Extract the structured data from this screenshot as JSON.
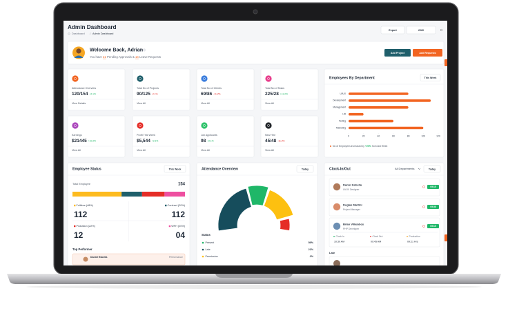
{
  "header": {
    "title": "Admin Dashboard",
    "breadcrumb": [
      "Dashboard",
      "Admin Dashboard"
    ],
    "export": "Export",
    "year": "2026"
  },
  "welcome": {
    "title": "Welcome Back, Adrian",
    "text_before": "You have",
    "approvals": "21",
    "text_middle": "Pending Approvals &",
    "leaves": "14",
    "text_after": "Leave Requests",
    "buttons": [
      "Add Project",
      "Add Requests"
    ]
  },
  "stats": [
    {
      "label": "Attendance Overview",
      "value": "120/154",
      "change": "+2.1%",
      "link": "View Details"
    },
    {
      "label": "Total No of Projects",
      "value": "90/125",
      "change": "-2.1%",
      "link": "View All"
    },
    {
      "label": "Total No of Clients",
      "value": "69/86",
      "change": "-11.2%",
      "link": "View All"
    },
    {
      "label": "Total No of Tasks",
      "value": "225/28",
      "change": "+11.2%",
      "link": "View All"
    },
    {
      "label": "Earnings",
      "value": "$21445",
      "change": "+10.2%",
      "link": "View All"
    },
    {
      "label": "Profit This Week",
      "value": "$5,544",
      "change": "+2.1%",
      "link": "View All"
    },
    {
      "label": "Job Applicants",
      "value": "98",
      "change": "+2.1%",
      "link": "View All"
    },
    {
      "label": "New Hire",
      "value": "45/48",
      "change": "-11.2%",
      "link": "View All"
    }
  ],
  "department_chart": {
    "type": "bar",
    "title": "Employees By Department",
    "filter": "This Week",
    "categories": [
      "UI/UX",
      "Development",
      "Management",
      "HR",
      "Testing",
      "Marketing"
    ],
    "values": [
      80,
      110,
      80,
      20,
      60,
      100
    ],
    "color": "#f26522",
    "xlim": [
      0,
      120
    ],
    "xticks": [
      0,
      20,
      40,
      60,
      80,
      100,
      120
    ],
    "note_before": "No of Employees increased by",
    "note_value": "+20%",
    "note_after": "from last Week"
  },
  "employee_status": {
    "title": "Employee Status",
    "filter": "This Week",
    "total_label": "Total Employee",
    "total": 154,
    "groups": [
      {
        "name": "Fulltime",
        "percent": 48,
        "percent_label": "(48%)",
        "count": "112",
        "color": "#fdbb1f"
      },
      {
        "name": "Contract",
        "percent": 20,
        "percent_label": "(20%)",
        "count": "112",
        "color": "#1f5f6b"
      },
      {
        "name": "Probation",
        "percent": 22,
        "percent_label": "(22%)",
        "count": "12",
        "color": "#e52d27"
      },
      {
        "name": "WFH",
        "percent": 20,
        "percent_label": "(20%)",
        "count": "04",
        "color": "#ee4fa0"
      }
    ],
    "top_performer": "Top Performer",
    "performer": {
      "name": "Daniel Esbella",
      "metric": "Performance"
    }
  },
  "attendance": {
    "title": "Attendance Overview",
    "filter": "Today",
    "status_title": "Status",
    "statuses": [
      {
        "name": "Present",
        "value": "59%"
      },
      {
        "name": "Late",
        "value": "21%"
      },
      {
        "name": "Permission",
        "value": "2%"
      }
    ]
  },
  "clock": {
    "title": "Clock-In/Out",
    "department": "All Departments",
    "filter": "Today",
    "people": [
      {
        "name": "Daniel Esbella",
        "role": "UI/UX Designer",
        "time": "09:15"
      },
      {
        "name": "Doglas Martini",
        "role": "Project Manager",
        "time": "09:36"
      },
      {
        "name": "Brian Villalobos",
        "role": "PHP Developer",
        "time": "09:15"
      }
    ],
    "details": [
      {
        "label": "Clock In",
        "value": "10:30 AM"
      },
      {
        "label": "Clock Out",
        "value": "09:45 AM"
      },
      {
        "label": "Production",
        "value": "09:21 Hrs"
      }
    ],
    "late": "Late"
  }
}
